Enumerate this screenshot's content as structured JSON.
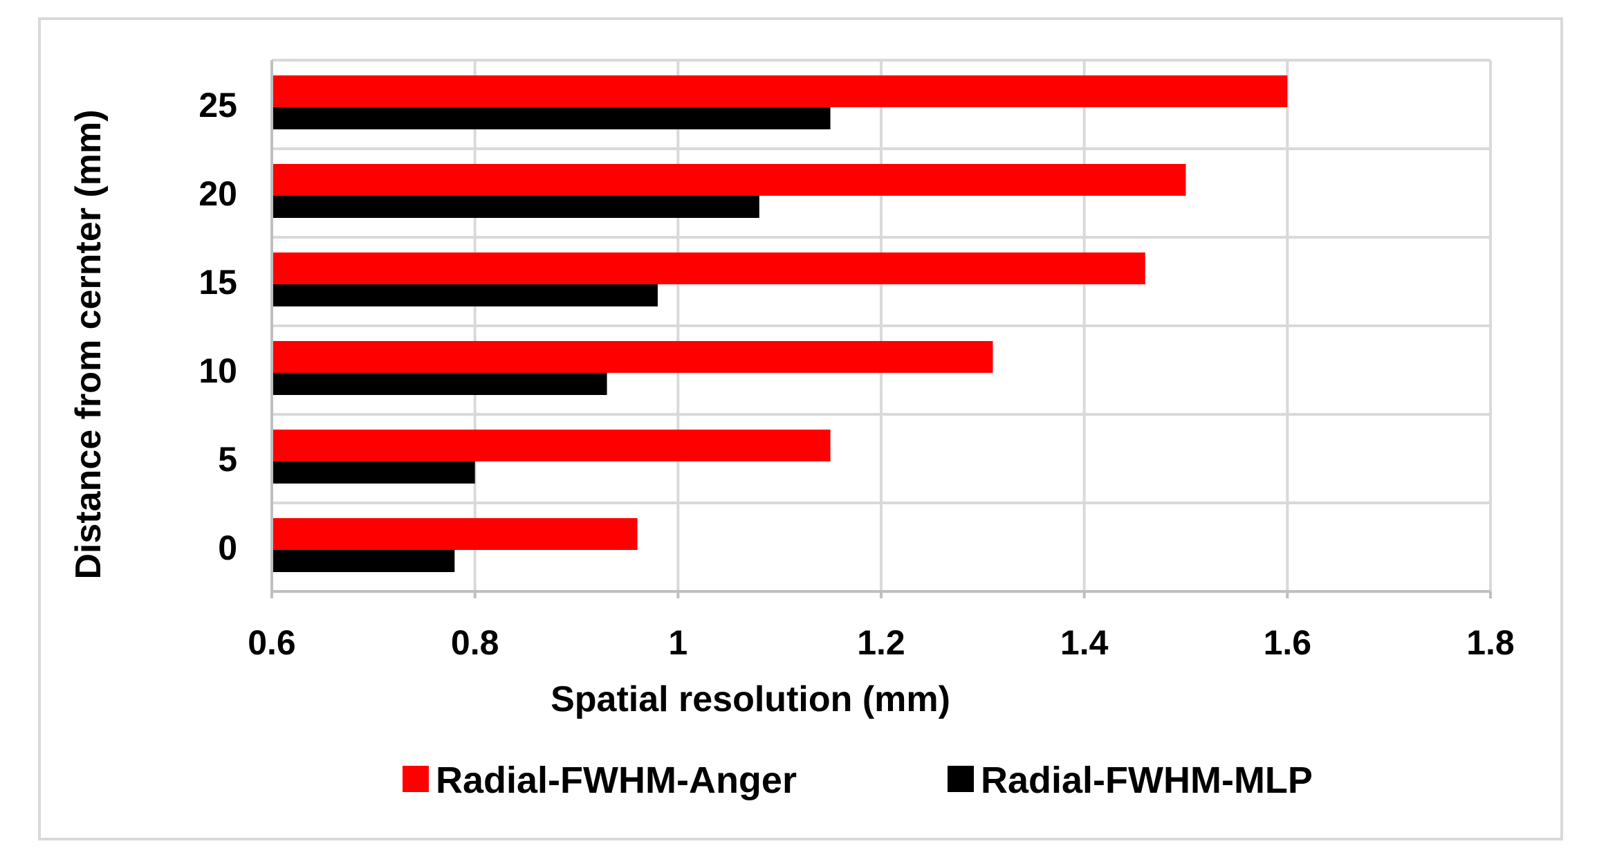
{
  "chart_data": {
    "type": "bar",
    "orientation": "horizontal",
    "categories": [
      "0",
      "5",
      "10",
      "15",
      "20",
      "25"
    ],
    "series": [
      {
        "name": "Radial-FWHM-Anger",
        "color": "#ff0000",
        "values": [
          0.96,
          1.15,
          1.31,
          1.46,
          1.5,
          1.6
        ]
      },
      {
        "name": "Radial-FWHM-MLP",
        "color": "#000000",
        "values": [
          0.78,
          0.8,
          0.93,
          0.98,
          1.08,
          1.15
        ]
      }
    ],
    "xlabel": "Spatial resolution (mm)",
    "ylabel": "Distance from cernter (mm)",
    "xlim": [
      0.6,
      1.8
    ],
    "xticks": [
      "0.6",
      "0.8",
      "1",
      "1.2",
      "1.4",
      "1.6",
      "1.8"
    ],
    "grid": true,
    "legend_position": "bottom"
  }
}
